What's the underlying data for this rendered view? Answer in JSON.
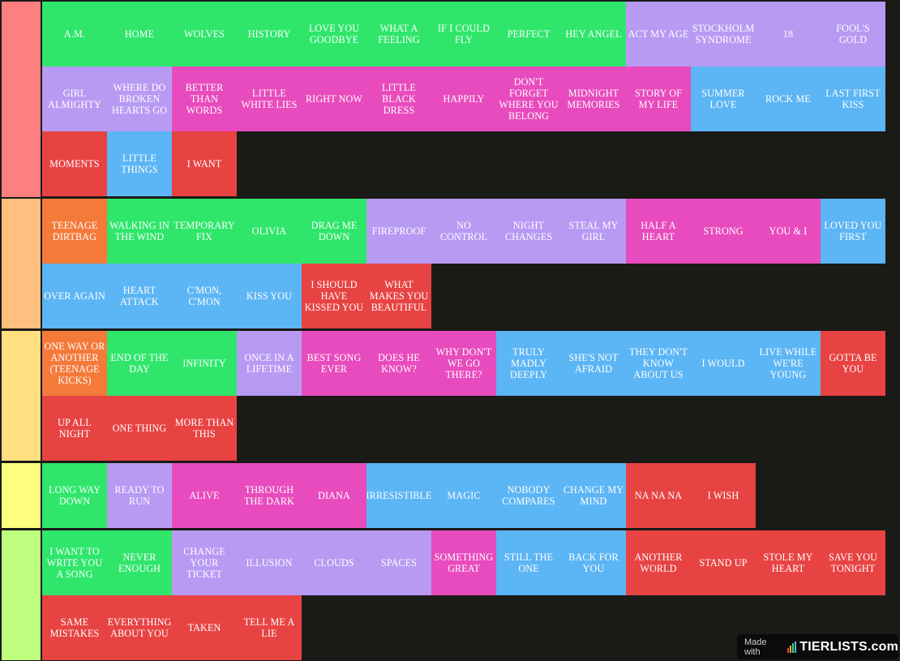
{
  "colors": {
    "green": "#2fe66b",
    "purple": "#b89af3",
    "pink": "#e84bbd",
    "blue": "#5cb5f4",
    "red": "#e84343",
    "orange": "#f47a3a",
    "background": "#1a1a17"
  },
  "tiers": [
    {
      "label_color": "#fe7f7f",
      "items": [
        {
          "label": "A.M.",
          "color": "green"
        },
        {
          "label": "HOME",
          "color": "green"
        },
        {
          "label": "WOLVES",
          "color": "green"
        },
        {
          "label": "HISTORY",
          "color": "green"
        },
        {
          "label": "LOVE YOU GOODBYE",
          "color": "green"
        },
        {
          "label": "WHAT A FEELING",
          "color": "green"
        },
        {
          "label": "IF I COULD FLY",
          "color": "green"
        },
        {
          "label": "PERFECT",
          "color": "green"
        },
        {
          "label": "HEY ANGEL",
          "color": "green"
        },
        {
          "label": "ACT MY AGE",
          "color": "purple"
        },
        {
          "label": "STOCKHOLM SYNDROME",
          "color": "purple"
        },
        {
          "label": "18",
          "color": "purple"
        },
        {
          "label": "FOOL'S GOLD",
          "color": "purple"
        },
        {
          "label": "GIRL ALMIGHTY",
          "color": "purple"
        },
        {
          "label": "WHERE DO BROKEN HEARTS GO",
          "color": "purple"
        },
        {
          "label": "BETTER THAN WORDS",
          "color": "pink"
        },
        {
          "label": "LITTLE WHITE LIES",
          "color": "pink"
        },
        {
          "label": "RIGHT NOW",
          "color": "pink"
        },
        {
          "label": "LITTLE BLACK DRESS",
          "color": "pink"
        },
        {
          "label": "HAPPILY",
          "color": "pink"
        },
        {
          "label": "DON'T FORGET WHERE YOU BELONG",
          "color": "pink"
        },
        {
          "label": "MIDNIGHT MEMORIES",
          "color": "pink"
        },
        {
          "label": "STORY OF MY LIFE",
          "color": "pink"
        },
        {
          "label": "SUMMER LOVE",
          "color": "blue"
        },
        {
          "label": "ROCK ME",
          "color": "blue"
        },
        {
          "label": "LAST FIRST KISS",
          "color": "blue"
        },
        {
          "label": "MOMENTS",
          "color": "red"
        },
        {
          "label": "LITTLE THINGS",
          "color": "blue"
        },
        {
          "label": "I WANT",
          "color": "red"
        }
      ]
    },
    {
      "label_color": "#ffbf7f",
      "items": [
        {
          "label": "TEENAGE DIRTBAG",
          "color": "orange"
        },
        {
          "label": "WALKING IN THE WIND",
          "color": "green"
        },
        {
          "label": "TEMPORARY FIX",
          "color": "green"
        },
        {
          "label": "OLIVIA",
          "color": "green"
        },
        {
          "label": "DRAG ME DOWN",
          "color": "green"
        },
        {
          "label": "FIREPROOF",
          "color": "purple"
        },
        {
          "label": "NO CONTROL",
          "color": "purple"
        },
        {
          "label": "NIGHT CHANGES",
          "color": "purple"
        },
        {
          "label": "STEAL MY GIRL",
          "color": "purple"
        },
        {
          "label": "HALF A HEART",
          "color": "pink"
        },
        {
          "label": "STRONG",
          "color": "pink"
        },
        {
          "label": "YOU & I",
          "color": "pink"
        },
        {
          "label": "LOVED YOU FIRST",
          "color": "blue"
        },
        {
          "label": "OVER AGAIN",
          "color": "blue"
        },
        {
          "label": "HEART ATTACK",
          "color": "blue"
        },
        {
          "label": "C'MON, C'MON",
          "color": "blue"
        },
        {
          "label": "KISS YOU",
          "color": "blue"
        },
        {
          "label": "I SHOULD HAVE KISSED YOU",
          "color": "red"
        },
        {
          "label": "WHAT MAKES YOU BEAUTIFUL",
          "color": "red"
        }
      ]
    },
    {
      "label_color": "#ffdf7f",
      "items": [
        {
          "label": "ONE WAY OR ANOTHER (TEENAGE KICKS)",
          "color": "orange"
        },
        {
          "label": "END OF THE DAY",
          "color": "green"
        },
        {
          "label": "INFINITY",
          "color": "green"
        },
        {
          "label": "ONCE IN A LIFETIME",
          "color": "purple"
        },
        {
          "label": "BEST SONG EVER",
          "color": "pink"
        },
        {
          "label": "DOES HE KNOW?",
          "color": "pink"
        },
        {
          "label": "WHY DON'T WE GO THERE?",
          "color": "pink"
        },
        {
          "label": "TRULY MADLY DEEPLY",
          "color": "blue"
        },
        {
          "label": "SHE'S NOT AFRAID",
          "color": "blue"
        },
        {
          "label": "THEY DON'T KNOW ABOUT US",
          "color": "blue"
        },
        {
          "label": "I WOULD",
          "color": "blue"
        },
        {
          "label": "LIVE WHILE WE'RE YOUNG",
          "color": "blue"
        },
        {
          "label": "GOTTA BE YOU",
          "color": "red"
        },
        {
          "label": "UP ALL NIGHT",
          "color": "red"
        },
        {
          "label": "ONE THING",
          "color": "red"
        },
        {
          "label": "MORE THAN THIS",
          "color": "red"
        }
      ]
    },
    {
      "label_color": "#ffff7f",
      "items": [
        {
          "label": "LONG WAY DOWN",
          "color": "green"
        },
        {
          "label": "READY TO RUN",
          "color": "purple"
        },
        {
          "label": "ALIVE",
          "color": "pink"
        },
        {
          "label": "THROUGH THE DARK",
          "color": "pink"
        },
        {
          "label": "DIANA",
          "color": "pink"
        },
        {
          "label": "IRRESISTIBLE",
          "color": "blue"
        },
        {
          "label": "MAGIC",
          "color": "blue"
        },
        {
          "label": "NOBODY COMPARES",
          "color": "blue"
        },
        {
          "label": "CHANGE MY MIND",
          "color": "blue"
        },
        {
          "label": "NA NA NA",
          "color": "red"
        },
        {
          "label": "I WISH",
          "color": "red"
        }
      ]
    },
    {
      "label_color": "#bfff7f",
      "items": [
        {
          "label": "I WANT TO WRITE YOU A SONG",
          "color": "green"
        },
        {
          "label": "NEVER ENOUGH",
          "color": "green"
        },
        {
          "label": "CHANGE YOUR TICKET",
          "color": "purple"
        },
        {
          "label": "ILLUSION",
          "color": "purple"
        },
        {
          "label": "CLOUDS",
          "color": "purple"
        },
        {
          "label": "SPACES",
          "color": "purple"
        },
        {
          "label": "SOMETHING GREAT",
          "color": "pink"
        },
        {
          "label": "STILL THE ONE",
          "color": "blue"
        },
        {
          "label": "BACK FOR YOU",
          "color": "blue"
        },
        {
          "label": "ANOTHER WORLD",
          "color": "red"
        },
        {
          "label": "STAND UP",
          "color": "red"
        },
        {
          "label": "STOLE MY HEART",
          "color": "red"
        },
        {
          "label": "SAVE YOU TONIGHT",
          "color": "red"
        },
        {
          "label": "SAME MISTAKES",
          "color": "red"
        },
        {
          "label": "EVERYTHING ABOUT YOU",
          "color": "red"
        },
        {
          "label": "TAKEN",
          "color": "red"
        },
        {
          "label": "TELL ME A LIE",
          "color": "red"
        }
      ]
    }
  ],
  "watermark": {
    "made_with": "Made with",
    "brand": "TIERLISTS.com"
  }
}
